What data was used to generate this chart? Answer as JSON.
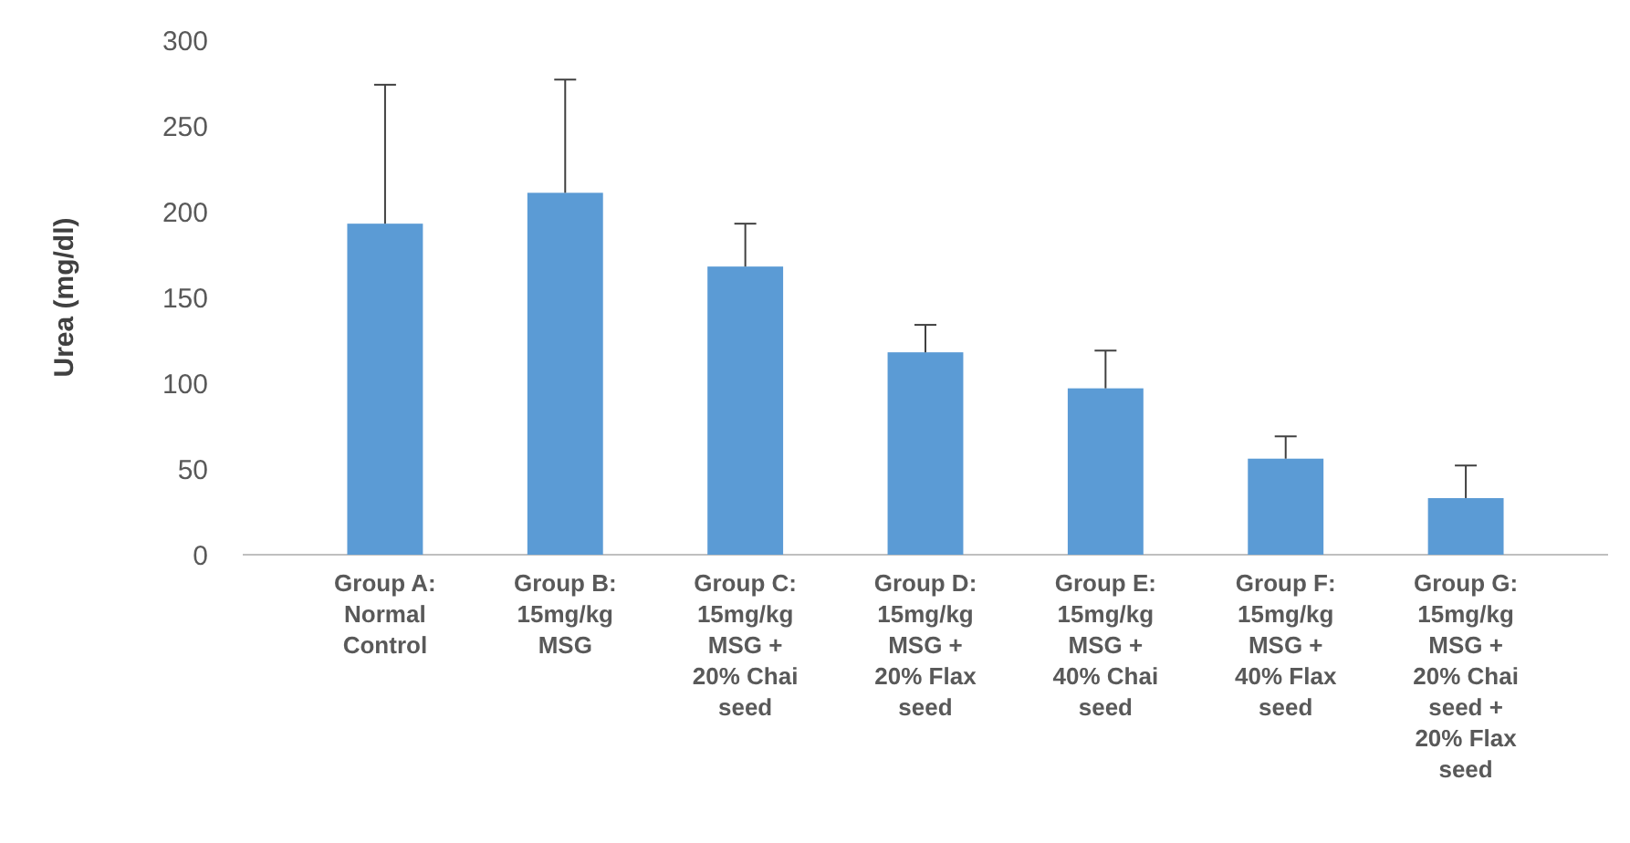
{
  "chart_data": {
    "type": "bar",
    "ylabel": "Urea (mg/dl)",
    "categories": [
      "Group A: Normal Control",
      "Group B: 15mg/kg MSG",
      "Group C: 15mg/kg MSG + 20% Chai seed",
      "Group D: 15mg/kg MSG + 20% Flax seed",
      "Group E: 15mg/kg MSG + 40% Chai seed",
      "Group F: 15mg/kg MSG + 40% Flax seed",
      "Group G: 15mg/kg MSG + 20% Chai seed + 20% Flax seed"
    ],
    "values": [
      193,
      211,
      168,
      118,
      97,
      56,
      33
    ],
    "errors": [
      [
        193,
        274
      ],
      [
        211,
        277
      ],
      [
        168,
        193
      ],
      [
        118,
        134
      ],
      [
        97,
        119
      ],
      [
        56,
        69
      ],
      [
        33,
        52
      ]
    ],
    "color": "#5b9bd5",
    "ylim": [
      0,
      300
    ],
    "yticks": [
      0,
      50,
      100,
      150,
      200,
      250,
      300
    ]
  }
}
